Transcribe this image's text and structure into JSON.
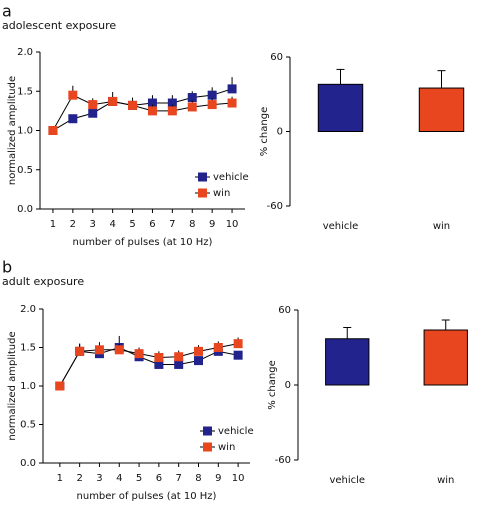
{
  "chart_data": [
    {
      "type": "line",
      "panel_label": "a",
      "title": "adolescent exposure",
      "xlabel": "number of pulses (at 10 Hz)",
      "ylabel": "normalized amplitude",
      "x": [
        1,
        2,
        3,
        4,
        5,
        6,
        7,
        8,
        9,
        10
      ],
      "xlim": [
        0.35,
        10.65
      ],
      "xticks": [
        1,
        2,
        3,
        4,
        5,
        6,
        7,
        8,
        9,
        10
      ],
      "ylim": [
        0,
        2
      ],
      "yticks": [
        {
          "value": 0,
          "label": "0.0"
        },
        0.5,
        {
          "value": 1,
          "label": "1.0"
        },
        1.5,
        {
          "value": 2,
          "label": "2.0"
        }
      ],
      "legend": "lower right",
      "series": [
        {
          "name": "vehicle",
          "color": "#23238e",
          "values": [
            1.0,
            1.15,
            1.22,
            1.37,
            1.32,
            1.35,
            1.35,
            1.42,
            1.45,
            1.53
          ],
          "errors": [
            0,
            0.05,
            0.05,
            0.05,
            0.05,
            0.1,
            0.1,
            0.08,
            0.1,
            0.15
          ]
        },
        {
          "name": "win",
          "color": "#e8461e",
          "values": [
            1.0,
            1.45,
            1.33,
            1.37,
            1.32,
            1.25,
            1.25,
            1.3,
            1.33,
            1.35
          ],
          "errors": [
            0,
            0.12,
            0.08,
            0.12,
            0.1,
            0.08,
            0.08,
            0.08,
            0.08,
            0.08
          ]
        }
      ]
    },
    {
      "type": "bar",
      "ylabel": "% change",
      "categories": [
        "vehicle",
        "win"
      ],
      "values": [
        38,
        35
      ],
      "errors": [
        12,
        14
      ],
      "colors": [
        "#23238e",
        "#e8461e"
      ],
      "ylim": [
        -60,
        60
      ],
      "yticks": [
        -60,
        0,
        60
      ]
    },
    {
      "type": "line",
      "panel_label": "b",
      "title": "adult exposure",
      "xlabel": "number of pulses (at 10 Hz)",
      "ylabel": "normalized amplitude",
      "x": [
        1,
        2,
        3,
        4,
        5,
        6,
        7,
        8,
        9,
        10
      ],
      "xlim": [
        0.15,
        10.6
      ],
      "xticks": [
        1,
        2,
        3,
        4,
        5,
        6,
        7,
        8,
        9,
        10
      ],
      "ylim": [
        0,
        2
      ],
      "yticks": [
        {
          "value": 0,
          "label": "0.0"
        },
        0.5,
        {
          "value": 1,
          "label": "1.0"
        },
        1.5,
        {
          "value": 2,
          "label": "2.0"
        }
      ],
      "legend": "lower right",
      "series": [
        {
          "name": "vehicle",
          "color": "#23238e",
          "values": [
            1.0,
            1.45,
            1.42,
            1.5,
            1.38,
            1.28,
            1.28,
            1.33,
            1.45,
            1.4
          ],
          "errors": [
            0,
            0.1,
            0.05,
            0.15,
            0.05,
            0.05,
            0.05,
            0.05,
            0.05,
            0.05
          ]
        },
        {
          "name": "win",
          "color": "#e8461e",
          "values": [
            1.0,
            1.45,
            1.47,
            1.47,
            1.42,
            1.37,
            1.38,
            1.45,
            1.5,
            1.55
          ],
          "errors": [
            0,
            0.1,
            0.1,
            0.08,
            0.08,
            0.08,
            0.08,
            0.08,
            0.08,
            0.08
          ]
        }
      ]
    },
    {
      "type": "bar",
      "ylabel": "% change",
      "categories": [
        "vehicle",
        "win"
      ],
      "values": [
        37,
        44
      ],
      "errors": [
        9,
        8
      ],
      "colors": [
        "#23238e",
        "#e8461e"
      ],
      "ylim": [
        -60,
        60
      ],
      "yticks": [
        -60,
        0,
        60
      ]
    }
  ]
}
